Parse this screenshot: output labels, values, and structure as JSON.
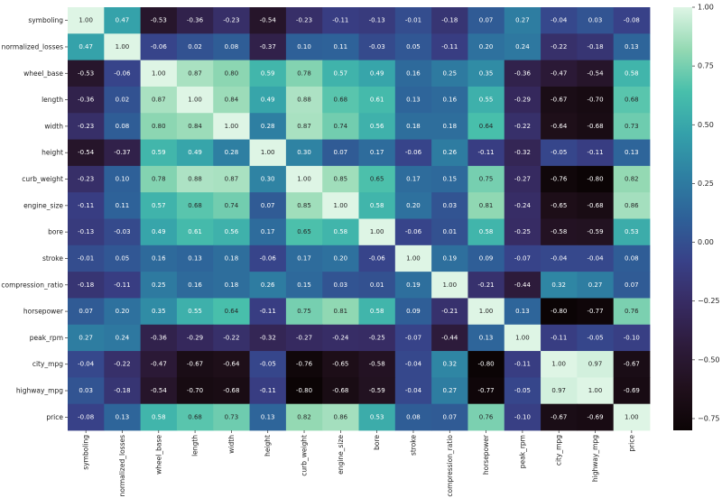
{
  "colors": {
    "colormap_name": "mako",
    "annotation_dark_text": "#262626",
    "annotation_light_text": "#ffffff"
  },
  "chart_data": {
    "type": "heatmap",
    "title": "",
    "xlabel": "",
    "ylabel": "",
    "value_range": [
      -0.8,
      1.0
    ],
    "annotation_format": "2 decimals",
    "colorbar_ticks": [
      "1.00",
      "0.75",
      "0.50",
      "0.25",
      "0.00",
      "−0.25",
      "−0.50",
      "−0.75"
    ],
    "colorbar_tick_values": [
      1.0,
      0.75,
      0.5,
      0.25,
      0.0,
      -0.25,
      -0.5,
      -0.75
    ],
    "labels": [
      "symboling",
      "normalized_losses",
      "wheel_base",
      "length",
      "width",
      "height",
      "curb_weight",
      "engine_size",
      "bore",
      "stroke",
      "compression_ratio",
      "horsepower",
      "peak_rpm",
      "city_mpg",
      "highway_mpg",
      "price"
    ],
    "matrix": [
      [
        1.0,
        0.47,
        -0.53,
        -0.36,
        -0.23,
        -0.54,
        -0.23,
        -0.11,
        -0.13,
        -0.01,
        -0.18,
        0.07,
        0.27,
        -0.04,
        0.03,
        -0.08
      ],
      [
        0.47,
        1.0,
        -0.06,
        0.02,
        0.08,
        -0.37,
        0.1,
        0.11,
        -0.03,
        0.05,
        -0.11,
        0.2,
        0.24,
        -0.22,
        -0.18,
        0.13
      ],
      [
        -0.53,
        -0.06,
        1.0,
        0.87,
        0.8,
        0.59,
        0.78,
        0.57,
        0.49,
        0.16,
        0.25,
        0.35,
        -0.36,
        -0.47,
        -0.54,
        0.58
      ],
      [
        -0.36,
        0.02,
        0.87,
        1.0,
        0.84,
        0.49,
        0.88,
        0.68,
        0.61,
        0.13,
        0.16,
        0.55,
        -0.29,
        -0.67,
        -0.7,
        0.68
      ],
      [
        -0.23,
        0.08,
        0.8,
        0.84,
        1.0,
        0.28,
        0.87,
        0.74,
        0.56,
        0.18,
        0.18,
        0.64,
        -0.22,
        -0.64,
        -0.68,
        0.73
      ],
      [
        -0.54,
        -0.37,
        0.59,
        0.49,
        0.28,
        1.0,
        0.3,
        0.07,
        0.17,
        -0.06,
        0.26,
        -0.11,
        -0.32,
        -0.05,
        -0.11,
        0.13
      ],
      [
        -0.23,
        0.1,
        0.78,
        0.88,
        0.87,
        0.3,
        1.0,
        0.85,
        0.65,
        0.17,
        0.15,
        0.75,
        -0.27,
        -0.76,
        -0.8,
        0.82
      ],
      [
        -0.11,
        0.11,
        0.57,
        0.68,
        0.74,
        0.07,
        0.85,
        1.0,
        0.58,
        0.2,
        0.03,
        0.81,
        -0.24,
        -0.65,
        -0.68,
        0.86
      ],
      [
        -0.13,
        -0.03,
        0.49,
        0.61,
        0.56,
        0.17,
        0.65,
        0.58,
        1.0,
        -0.06,
        0.01,
        0.58,
        -0.25,
        -0.58,
        -0.59,
        0.53
      ],
      [
        -0.01,
        0.05,
        0.16,
        0.13,
        0.18,
        -0.06,
        0.17,
        0.2,
        -0.06,
        1.0,
        0.19,
        0.09,
        -0.07,
        -0.04,
        -0.04,
        0.08
      ],
      [
        -0.18,
        -0.11,
        0.25,
        0.16,
        0.18,
        0.26,
        0.15,
        0.03,
        0.01,
        0.19,
        1.0,
        -0.21,
        -0.44,
        0.32,
        0.27,
        0.07
      ],
      [
        0.07,
        0.2,
        0.35,
        0.55,
        0.64,
        -0.11,
        0.75,
        0.81,
        0.58,
        0.09,
        -0.21,
        1.0,
        0.13,
        -0.8,
        -0.77,
        0.76
      ],
      [
        0.27,
        0.24,
        -0.36,
        -0.29,
        -0.22,
        -0.32,
        -0.27,
        -0.24,
        -0.25,
        -0.07,
        -0.44,
        0.13,
        1.0,
        -0.11,
        -0.05,
        -0.1
      ],
      [
        -0.04,
        -0.22,
        -0.47,
        -0.67,
        -0.64,
        -0.05,
        -0.76,
        -0.65,
        -0.58,
        -0.04,
        0.32,
        -0.8,
        -0.11,
        1.0,
        0.97,
        -0.67
      ],
      [
        0.03,
        -0.18,
        -0.54,
        -0.7,
        -0.68,
        -0.11,
        -0.8,
        -0.68,
        -0.59,
        -0.04,
        0.27,
        -0.77,
        -0.05,
        0.97,
        1.0,
        -0.69
      ],
      [
        -0.08,
        0.13,
        0.58,
        0.68,
        0.73,
        0.13,
        0.82,
        0.86,
        0.53,
        0.08,
        0.07,
        0.76,
        -0.1,
        -0.67,
        -0.69,
        1.0
      ]
    ]
  }
}
